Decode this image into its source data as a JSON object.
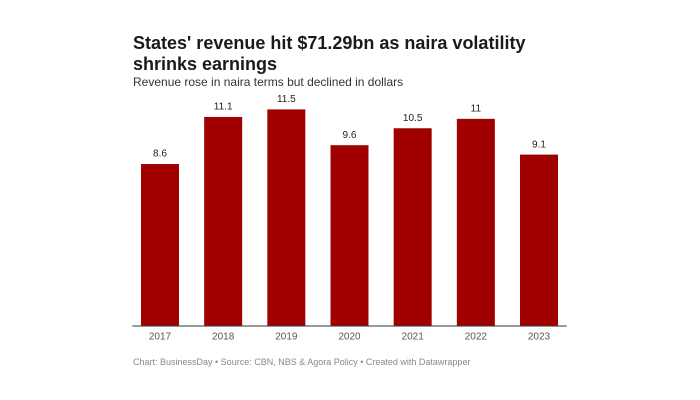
{
  "chart_data": {
    "type": "bar",
    "title": "States' revenue hit $71.29bn as naira volatility shrinks earnings",
    "subtitle": "Revenue rose in naira terms but declined in dollars",
    "categories": [
      "2017",
      "2018",
      "2019",
      "2020",
      "2021",
      "2022",
      "2023"
    ],
    "values": [
      8.6,
      11.1,
      11.5,
      9.6,
      10.5,
      11,
      9.1
    ],
    "color": "#a00000",
    "ylim": [
      0,
      12
    ],
    "source": "Chart: BusinessDay • Source: CBN, NBS & Agora Policy • Created with Datawrapper"
  }
}
